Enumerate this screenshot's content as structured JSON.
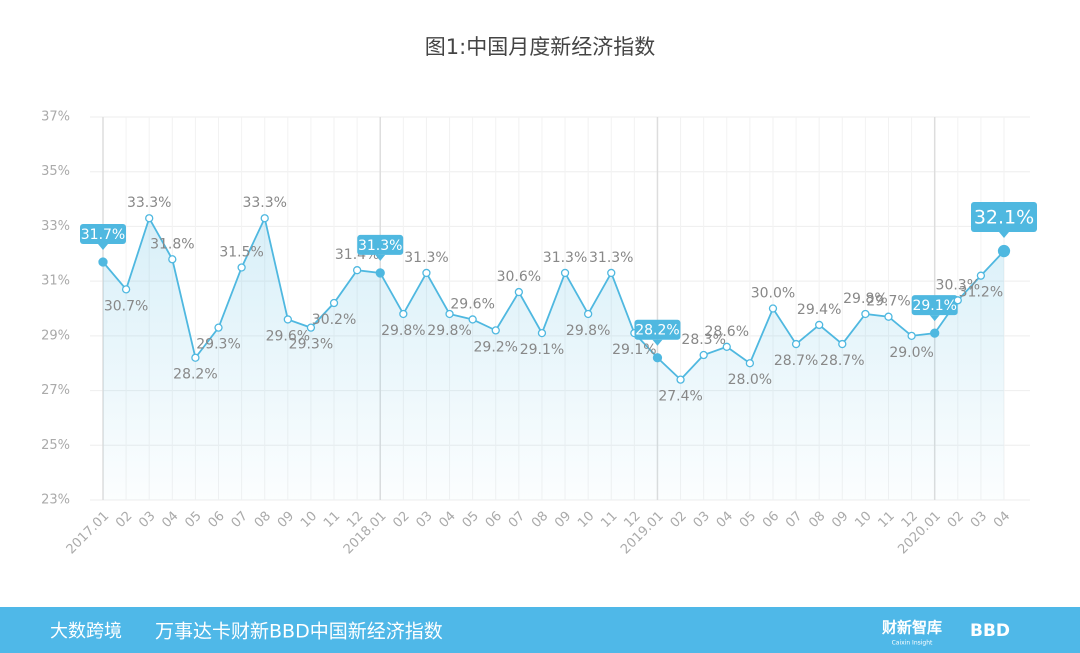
{
  "chart_data": {
    "type": "line",
    "title": "图1:中国月度新经济指数",
    "categories": [
      "2017.01",
      "02",
      "03",
      "04",
      "05",
      "06",
      "07",
      "08",
      "09",
      "10",
      "11",
      "12",
      "2018.01",
      "02",
      "03",
      "04",
      "05",
      "06",
      "07",
      "08",
      "09",
      "10",
      "11",
      "12",
      "2019.01",
      "02",
      "03",
      "04",
      "05",
      "06",
      "07",
      "08",
      "09",
      "10",
      "11",
      "12",
      "2020.01",
      "02",
      "03",
      "04"
    ],
    "values": [
      31.7,
      30.7,
      33.3,
      31.8,
      28.2,
      29.3,
      31.5,
      33.3,
      29.6,
      29.3,
      30.2,
      31.4,
      31.3,
      29.8,
      31.3,
      29.8,
      29.6,
      29.2,
      30.6,
      29.1,
      31.3,
      29.8,
      31.3,
      29.1,
      28.2,
      27.4,
      28.3,
      28.6,
      28.0,
      30.0,
      28.7,
      29.4,
      28.7,
      29.8,
      29.7,
      29.0,
      29.1,
      30.3,
      31.2,
      32.1
    ],
    "value_labels": [
      "31.7%",
      "30.7%",
      "33.3%",
      "31.8%",
      "28.2%",
      "29.3%",
      "31.5%",
      "33.3%",
      "29.6%",
      "29.3%",
      "30.2%",
      "31.4%",
      "31.3%",
      "29.8%",
      "31.3%",
      "29.8%",
      "29.6%",
      "29.2%",
      "30.6%",
      "29.1%",
      "31.3%",
      "29.8%",
      "31.3%",
      "29.1%",
      "28.2%",
      "27.4%",
      "28.3%",
      "28.6%",
      "28.0%",
      "30.0%",
      "28.7%",
      "29.4%",
      "28.7%",
      "29.8%",
      "29.7%",
      "29.0%",
      "29.1%",
      "30.3%",
      "31.2%",
      "32.1%"
    ],
    "color": "#4fb8e0",
    "ylim": [
      23,
      37
    ],
    "yticks": [
      {
        "value": 23,
        "label": "23%"
      },
      {
        "value": 25,
        "label": "25%"
      },
      {
        "value": 27,
        "label": "27%"
      },
      {
        "value": 29,
        "label": "29%"
      },
      {
        "value": 31,
        "label": "31%"
      },
      {
        "value": 33,
        "label": "33%"
      },
      {
        "value": 35,
        "label": "35%"
      },
      {
        "value": 37,
        "label": "37%"
      }
    ],
    "grid": true
  },
  "footer": {
    "logo": "大数跨境",
    "source": "万事达卡财新BBD中国新经济指数",
    "brand1": "财新智库",
    "brand1_sub": "Caixin Insight",
    "brand2": "BBD"
  }
}
